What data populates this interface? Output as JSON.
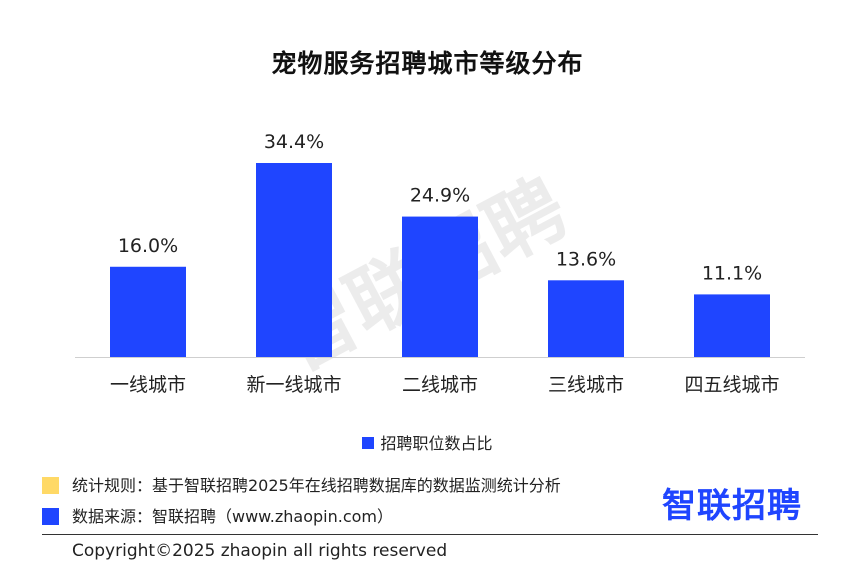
{
  "chart_data": {
    "type": "bar",
    "title": "宠物服务招聘城市等级分布",
    "categories": [
      "一线城市",
      "新一线城市",
      "二线城市",
      "三线城市",
      "四五线城市"
    ],
    "series": [
      {
        "name": "招聘职位数占比",
        "values": [
          16.0,
          34.4,
          24.9,
          13.6,
          11.1
        ],
        "color": "#1F45FF"
      }
    ],
    "value_labels": [
      "16.0%",
      "34.4%",
      "24.9%",
      "13.6%",
      "11.1%"
    ],
    "unit": "%",
    "ylim": [
      0,
      34.4
    ],
    "grid": false,
    "legend_position": "bottom-center",
    "watermark": "智联招聘"
  },
  "notes": {
    "rule": "统计规则：基于智联招聘2025年在线招聘数据库的数据监测统计分析",
    "source": "数据来源：智联招聘（www.zhaopin.com）",
    "rule_color": "#FFD966",
    "source_color": "#1F45FF"
  },
  "brand": {
    "logo_text": "智联招聘",
    "color": "#1F45FF"
  },
  "footer": {
    "copyright": "Copyright©2025 zhaopin all rights reserved"
  }
}
